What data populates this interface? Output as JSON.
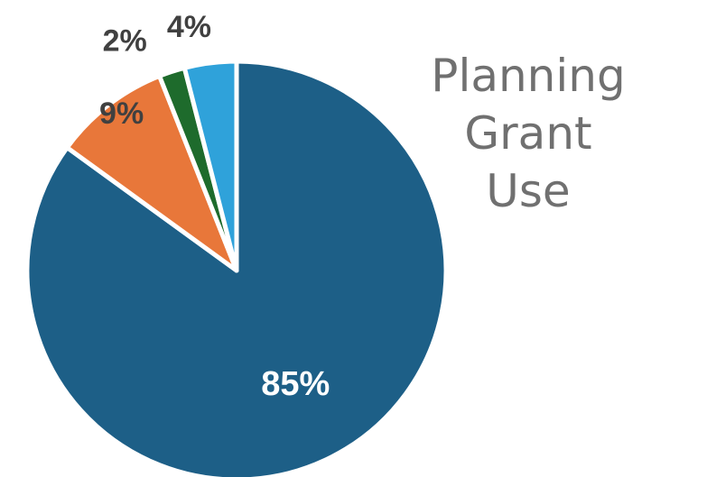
{
  "chart_data": {
    "type": "pie",
    "title": "Planning Grant Use",
    "title_lines": [
      "Planning Grant",
      "Use"
    ],
    "slices": [
      {
        "value": 85,
        "label": "85%",
        "color": "#1d5f87",
        "label_color": "#ffffff"
      },
      {
        "value": 9,
        "label": "9%",
        "color": "#e8773a",
        "label_color": "#404040"
      },
      {
        "value": 2,
        "label": "2%",
        "color": "#1e6b2c",
        "label_color": "#404040"
      },
      {
        "value": 4,
        "label": "4%",
        "color": "#2fa2da",
        "label_color": "#404040"
      }
    ],
    "start_angle_degrees": 0,
    "direction": "clockwise",
    "slice_border_color": "#ffffff",
    "legend": "none"
  }
}
